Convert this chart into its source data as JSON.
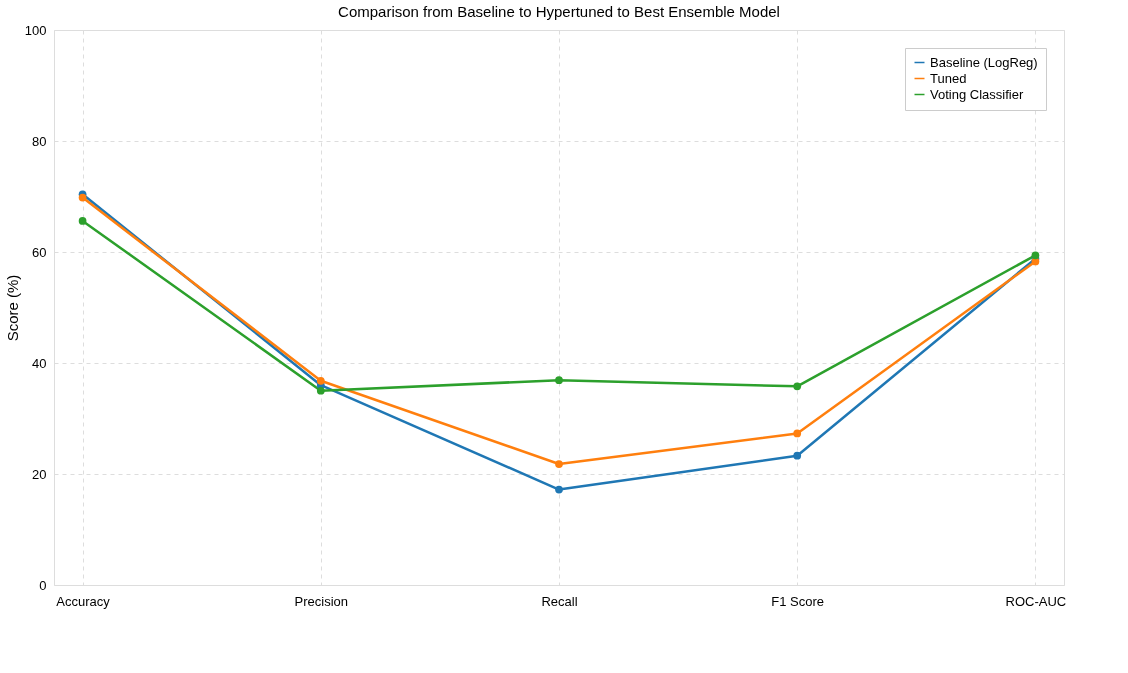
{
  "chart_data": {
    "type": "line",
    "title": "Comparison from Baseline to Hypertuned to Best Ensemble Model",
    "ylabel": "Score (%)",
    "categories": [
      "Accuracy",
      "Precision",
      "Recall",
      "F1 Score",
      "ROC-AUC"
    ],
    "series": [
      {
        "name": "Baseline (LogReg)",
        "color": "#1f77b4",
        "values": [
          70.4,
          36.0,
          17.2,
          23.3,
          58.8
        ]
      },
      {
        "name": "Tuned",
        "color": "#ff7f0e",
        "values": [
          69.8,
          36.8,
          21.8,
          27.3,
          58.3
        ]
      },
      {
        "name": "Voting Classifier",
        "color": "#2ca02c",
        "values": [
          65.6,
          35.0,
          36.9,
          35.8,
          59.4
        ]
      }
    ],
    "ylim": [
      0,
      100
    ],
    "yticks": [
      0,
      20,
      40,
      60,
      80,
      100
    ],
    "grid": true,
    "legend": "top right",
    "marker": "circle",
    "line_style": "solid"
  }
}
